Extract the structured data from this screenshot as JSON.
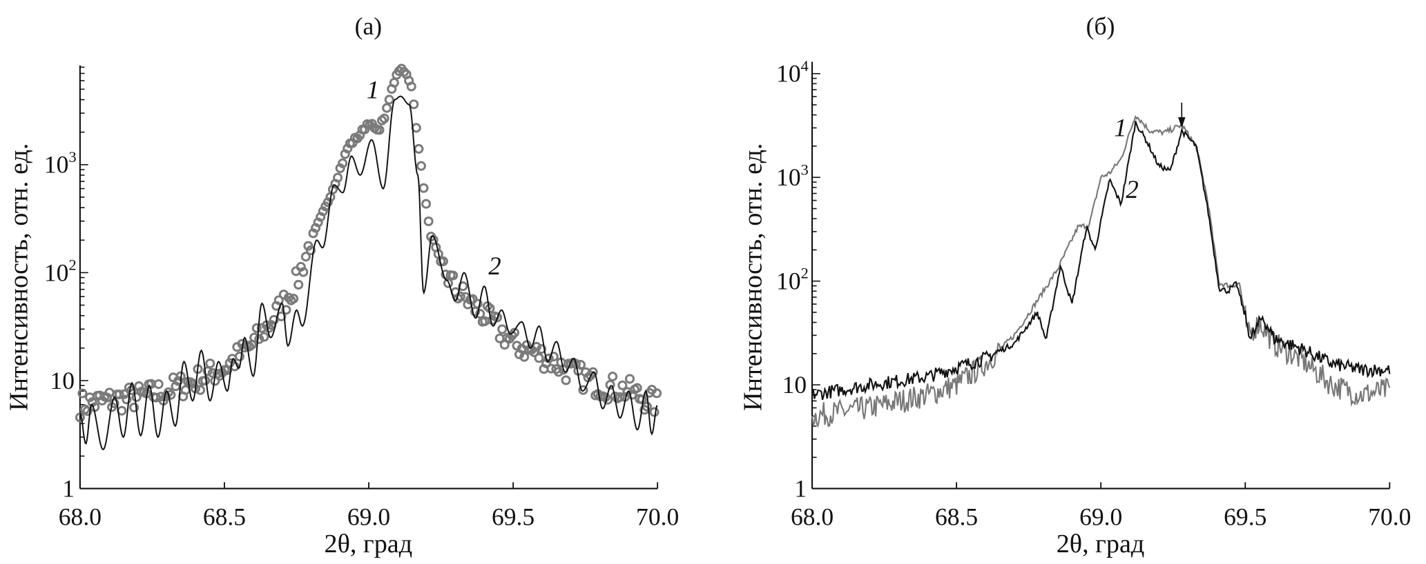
{
  "chart_data": [
    {
      "type": "line",
      "panel_label": "(а)",
      "xlabel": "2θ, град",
      "ylabel": "Интенсивность, отн. ед.",
      "xlim": [
        68.0,
        70.0
      ],
      "ylim": [
        1,
        8300
      ],
      "yscale": "log",
      "grid": false,
      "x_ticks": [
        "68.0",
        "68.5",
        "69.0",
        "69.5",
        "70.0"
      ],
      "y_ticks": [
        {
          "value": 1,
          "label": "1"
        },
        {
          "value": 10,
          "label": "10"
        },
        {
          "value": 100,
          "label": "10",
          "exp": "2"
        },
        {
          "value": 1000,
          "label": "10",
          "exp": "3"
        }
      ],
      "series": [
        {
          "label": "1",
          "style": "circles",
          "color": "#7a7a7a",
          "points": [
            [
              68.0,
              6
            ],
            [
              68.1,
              6.5
            ],
            [
              68.2,
              7
            ],
            [
              68.3,
              8
            ],
            [
              68.4,
              10
            ],
            [
              68.5,
              13
            ],
            [
              68.6,
              22
            ],
            [
              68.65,
              32
            ],
            [
              68.7,
              50
            ],
            [
              68.75,
              80
            ],
            [
              68.8,
              200
            ],
            [
              68.85,
              400
            ],
            [
              68.9,
              900
            ],
            [
              68.93,
              1500
            ],
            [
              68.97,
              1900
            ],
            [
              69.0,
              2500
            ],
            [
              69.03,
              2000
            ],
            [
              69.06,
              3000
            ],
            [
              69.08,
              5000
            ],
            [
              69.1,
              7500
            ],
            [
              69.12,
              7800
            ],
            [
              69.15,
              5000
            ],
            [
              69.18,
              1000
            ],
            [
              69.21,
              250
            ],
            [
              69.25,
              120
            ],
            [
              69.3,
              70
            ],
            [
              69.4,
              40
            ],
            [
              69.5,
              22
            ],
            [
              69.6,
              17
            ],
            [
              69.7,
              12
            ],
            [
              69.8,
              9
            ],
            [
              69.9,
              8
            ],
            [
              70.0,
              6
            ]
          ]
        },
        {
          "label": "2",
          "style": "line",
          "color": "#111111",
          "points": [
            [
              68.0,
              5
            ],
            [
              68.02,
              2.6
            ],
            [
              68.04,
              6
            ],
            [
              68.08,
              2.3
            ],
            [
              68.12,
              7
            ],
            [
              68.15,
              3
            ],
            [
              68.18,
              9.5
            ],
            [
              68.21,
              3.1
            ],
            [
              68.24,
              9
            ],
            [
              68.27,
              3
            ],
            [
              68.3,
              8
            ],
            [
              68.33,
              3.8
            ],
            [
              68.36,
              15
            ],
            [
              68.39,
              6.5
            ],
            [
              68.42,
              19
            ],
            [
              68.45,
              6.5
            ],
            [
              68.48,
              15
            ],
            [
              68.51,
              8
            ],
            [
              68.53,
              16
            ],
            [
              68.55,
              13
            ],
            [
              68.57,
              25
            ],
            [
              68.6,
              11
            ],
            [
              68.63,
              52
            ],
            [
              68.66,
              25
            ],
            [
              68.7,
              52
            ],
            [
              68.72,
              21
            ],
            [
              68.75,
              45
            ],
            [
              68.77,
              32
            ],
            [
              68.82,
              200
            ],
            [
              68.84,
              170
            ],
            [
              68.88,
              650
            ],
            [
              68.91,
              550
            ],
            [
              68.94,
              1200
            ],
            [
              68.97,
              800
            ],
            [
              69.01,
              1700
            ],
            [
              69.05,
              600
            ],
            [
              69.09,
              4000
            ],
            [
              69.11,
              4300
            ],
            [
              69.14,
              3600
            ],
            [
              69.17,
              800
            ],
            [
              69.19,
              65
            ],
            [
              69.22,
              220
            ],
            [
              69.27,
              85
            ],
            [
              69.3,
              55
            ],
            [
              69.33,
              100
            ],
            [
              69.37,
              38
            ],
            [
              69.4,
              75
            ],
            [
              69.43,
              32
            ],
            [
              69.46,
              45
            ],
            [
              69.49,
              27
            ],
            [
              69.53,
              35
            ],
            [
              69.56,
              20
            ],
            [
              69.59,
              32
            ],
            [
              69.62,
              15
            ],
            [
              69.65,
              23
            ],
            [
              69.68,
              12
            ],
            [
              69.71,
              16
            ],
            [
              69.74,
              8
            ],
            [
              69.78,
              12
            ],
            [
              69.81,
              5.5
            ],
            [
              69.84,
              9
            ],
            [
              69.87,
              4.5
            ],
            [
              69.9,
              8
            ],
            [
              69.93,
              3.5
            ],
            [
              69.96,
              8
            ],
            [
              69.98,
              3.2
            ],
            [
              70.0,
              6
            ]
          ]
        }
      ]
    },
    {
      "type": "line",
      "panel_label": "(б)",
      "xlabel": "2θ, град",
      "ylabel": "Интенсивность, отн. ед.",
      "xlim": [
        68.0,
        70.0
      ],
      "ylim": [
        1,
        13000
      ],
      "yscale": "log",
      "grid": false,
      "x_ticks": [
        "68.0",
        "68.5",
        "69.0",
        "69.5",
        "70.0"
      ],
      "y_ticks": [
        {
          "value": 1,
          "label": "1"
        },
        {
          "value": 10,
          "label": "10"
        },
        {
          "value": 100,
          "label": "10",
          "exp": "2"
        },
        {
          "value": 1000,
          "label": "10",
          "exp": "3"
        },
        {
          "value": 10000,
          "label": "10",
          "exp": "4"
        }
      ],
      "arrow_x": 69.28,
      "series": [
        {
          "label": "1",
          "style": "line",
          "color": "#777777",
          "points": [
            [
              68.0,
              5
            ],
            [
              68.2,
              6
            ],
            [
              68.4,
              8
            ],
            [
              68.5,
              10
            ],
            [
              68.6,
              16
            ],
            [
              68.7,
              30
            ],
            [
              68.78,
              65
            ],
            [
              68.85,
              130
            ],
            [
              68.92,
              330
            ],
            [
              68.96,
              350
            ],
            [
              69.0,
              1000
            ],
            [
              69.03,
              1100
            ],
            [
              69.07,
              1500
            ],
            [
              69.12,
              4000
            ],
            [
              69.17,
              2800
            ],
            [
              69.22,
              2700
            ],
            [
              69.28,
              3200
            ],
            [
              69.33,
              2000
            ],
            [
              69.37,
              600
            ],
            [
              69.41,
              95
            ],
            [
              69.45,
              90
            ],
            [
              69.48,
              95
            ],
            [
              69.51,
              30
            ],
            [
              69.55,
              40
            ],
            [
              69.6,
              25
            ],
            [
              69.7,
              17
            ],
            [
              69.8,
              10
            ],
            [
              69.9,
              8
            ],
            [
              70.0,
              9
            ]
          ]
        },
        {
          "label": "2",
          "style": "line",
          "color": "#111111",
          "points": [
            [
              68.0,
              8
            ],
            [
              68.2,
              10
            ],
            [
              68.4,
              12
            ],
            [
              68.6,
              18
            ],
            [
              68.7,
              25
            ],
            [
              68.78,
              50
            ],
            [
              68.81,
              27
            ],
            [
              68.86,
              140
            ],
            [
              68.9,
              60
            ],
            [
              68.95,
              330
            ],
            [
              68.98,
              200
            ],
            [
              69.03,
              950
            ],
            [
              69.07,
              550
            ],
            [
              69.12,
              3400
            ],
            [
              69.16,
              2200
            ],
            [
              69.2,
              1300
            ],
            [
              69.24,
              1150
            ],
            [
              69.28,
              2800
            ],
            [
              69.33,
              2000
            ],
            [
              69.37,
              500
            ],
            [
              69.41,
              85
            ],
            [
              69.44,
              80
            ],
            [
              69.47,
              95
            ],
            [
              69.5,
              45
            ],
            [
              69.52,
              28
            ],
            [
              69.56,
              45
            ],
            [
              69.6,
              28
            ],
            [
              69.7,
              22
            ],
            [
              69.8,
              16
            ],
            [
              69.9,
              14
            ],
            [
              70.0,
              14
            ]
          ]
        }
      ]
    }
  ]
}
